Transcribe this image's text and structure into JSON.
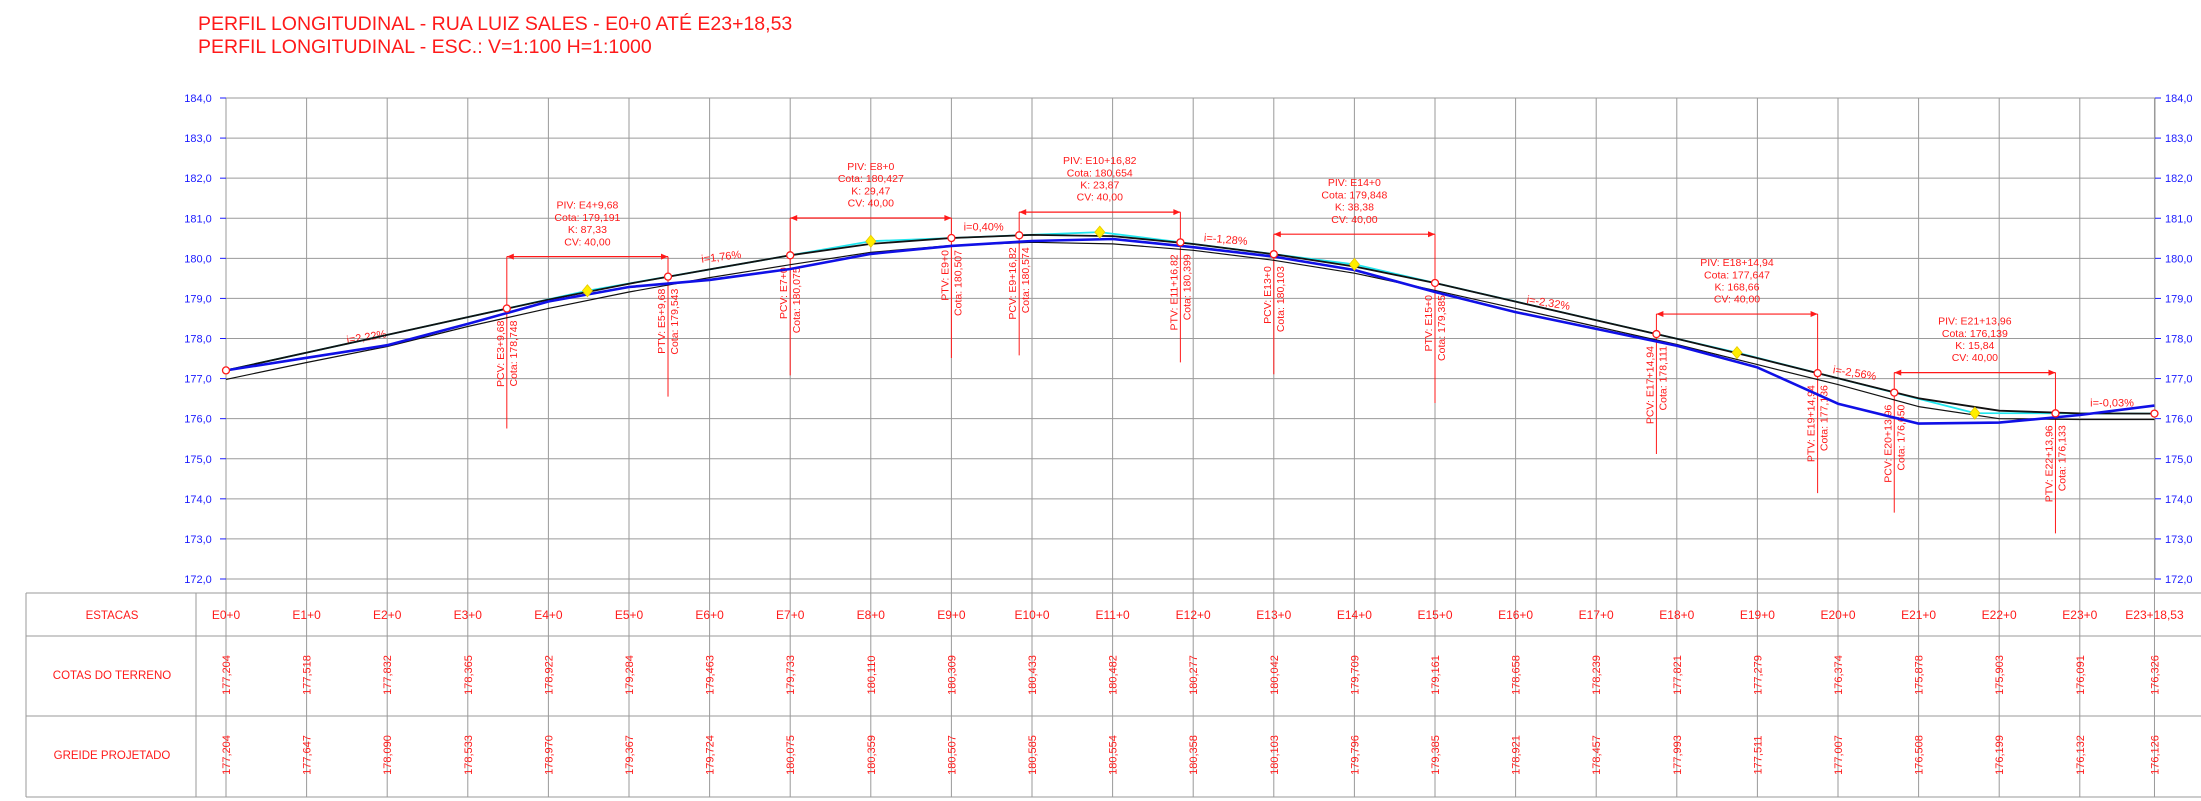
{
  "titles": {
    "line1": "PERFIL LONGITUDINAL - RUA LUIZ SALES - E0+0 ATÉ E23+18,53",
    "line2": "PERFIL LONGITUDINAL - ESC.: V=1:100 H=1:1000"
  },
  "colors": {
    "text_red": "#ff1a1a",
    "axis_blue": "#1a1aff",
    "grid": "#9a9a9a",
    "terrain_design": "#1010e6",
    "cyan_grade": "#22e6ee",
    "black_line": "#111111",
    "curve_marker": "#ff1a1a",
    "vertex_marker": "#ffee00"
  },
  "chart_data": {
    "type": "line",
    "ylim": [
      172.0,
      184.0
    ],
    "x_range": [
      0,
      23.9265
    ],
    "y_ticks": [
      "172,0",
      "173,0",
      "174,0",
      "175,0",
      "176,0",
      "177,0",
      "178,0",
      "179,0",
      "180,0",
      "181,0",
      "182,0",
      "183,0",
      "184,0"
    ],
    "y_tick_values": [
      172,
      173,
      174,
      175,
      176,
      177,
      178,
      179,
      180,
      181,
      182,
      183,
      184
    ],
    "stations": {
      "labels": [
        "E0+0",
        "E1+0",
        "E2+0",
        "E3+0",
        "E4+0",
        "E5+0",
        "E6+0",
        "E7+0",
        "E8+0",
        "E9+0",
        "E10+0",
        "E11+0",
        "E12+0",
        "E13+0",
        "E14+0",
        "E15+0",
        "E16+0",
        "E17+0",
        "E18+0",
        "E19+0",
        "E20+0",
        "E21+0",
        "E22+0",
        "E23+0",
        "E23+18,53"
      ],
      "x": [
        0,
        1,
        2,
        3,
        4,
        5,
        6,
        7,
        8,
        9,
        10,
        11,
        12,
        13,
        14,
        15,
        16,
        17,
        18,
        19,
        20,
        21,
        22,
        23,
        23.9265
      ],
      "terreno_text": [
        "177,204",
        "177,518",
        "177,832",
        "178,365",
        "178,922",
        "179,284",
        "179,463",
        "179,733",
        "180,110",
        "180,309",
        "180,433",
        "180,482",
        "180,277",
        "180,042",
        "179,709",
        "179,161",
        "178,658",
        "178,239",
        "177,821",
        "177,279",
        "176,374",
        "175,878",
        "175,903",
        "176,091",
        "176,326"
      ],
      "greide_text": [
        "177,204",
        "177,647",
        "178,090",
        "178,533",
        "178,970",
        "179,367",
        "179,724",
        "180,075",
        "180,359",
        "180,507",
        "180,585",
        "180,554",
        "180,358",
        "180,103",
        "179,796",
        "179,385",
        "178,921",
        "178,457",
        "177,993",
        "177,511",
        "177,007",
        "176,508",
        "176,199",
        "176,132",
        "176,126"
      ]
    },
    "series": [
      {
        "key": "terrain",
        "x": [
          0,
          1,
          2,
          3,
          4,
          5,
          6,
          7,
          8,
          9,
          10,
          11,
          12,
          13,
          14,
          15,
          16,
          17,
          18,
          19,
          20,
          21,
          22,
          23,
          23.9265
        ],
        "y": [
          177.204,
          177.518,
          177.832,
          178.365,
          178.922,
          179.284,
          179.463,
          179.733,
          180.11,
          180.309,
          180.433,
          180.482,
          180.277,
          180.042,
          179.709,
          179.161,
          178.658,
          178.239,
          177.821,
          177.279,
          176.374,
          175.878,
          175.903,
          176.091,
          176.326
        ]
      },
      {
        "key": "grade-design",
        "x": [
          0,
          1,
          2,
          3,
          4,
          5,
          6,
          7,
          8,
          9,
          10,
          11,
          12,
          13,
          14,
          15,
          16,
          17,
          18,
          19,
          20,
          21,
          22,
          23,
          23.9265
        ],
        "y": [
          177.204,
          177.647,
          178.09,
          178.533,
          178.97,
          179.367,
          179.724,
          180.075,
          180.359,
          180.507,
          180.585,
          180.554,
          180.358,
          180.103,
          179.796,
          179.385,
          178.921,
          178.457,
          177.993,
          177.511,
          177.007,
          176.508,
          176.199,
          176.132,
          176.126
        ]
      },
      {
        "key": "tangent-lines",
        "x": [
          0,
          4.484,
          8,
          10.841,
          14,
          18.747,
          21.698,
          23.9265
        ],
        "y": [
          177.204,
          179.191,
          180.427,
          180.654,
          179.848,
          177.647,
          176.139,
          176.126
        ]
      },
      {
        "key": "existing-ground",
        "x": [
          0,
          1,
          2,
          3,
          4,
          5,
          6,
          7,
          8,
          9,
          10,
          11,
          12,
          13,
          14,
          15,
          16,
          17,
          18,
          19,
          20,
          21,
          22,
          23,
          23.9265
        ],
        "y": [
          176.98,
          177.4,
          177.8,
          178.3,
          178.75,
          179.16,
          179.52,
          179.84,
          180.15,
          180.32,
          180.4,
          180.36,
          180.2,
          179.95,
          179.63,
          179.2,
          178.75,
          178.3,
          177.85,
          177.35,
          176.85,
          176.3,
          176.0,
          175.98,
          175.98
        ]
      }
    ],
    "grade_labels": [
      {
        "text": "i=2,22%",
        "x": 1.75,
        "y": 177.95,
        "angle": -9
      },
      {
        "text": "i=1,76%",
        "x": 6.15,
        "y": 179.95,
        "angle": -7
      },
      {
        "text": "i=0,40%",
        "x": 9.4,
        "y": 180.7,
        "angle": 0
      },
      {
        "text": "i=-1,28%",
        "x": 12.4,
        "y": 180.38,
        "angle": 5
      },
      {
        "text": "i=-2,32%",
        "x": 16.4,
        "y": 178.8,
        "angle": 9
      },
      {
        "text": "i=-2,56%",
        "x": 20.2,
        "y": 177.05,
        "angle": 9
      },
      {
        "text": "i=-0,03%",
        "x": 23.4,
        "y": 176.3,
        "angle": 0
      }
    ],
    "vertical_curves": [
      {
        "piv_x": 4.484,
        "piv_y": 179.191,
        "pcv_x": 3.484,
        "pcv_y": 178.748,
        "ptv_x": 5.484,
        "ptv_y": 179.543,
        "info": [
          "PIV: E4+9,68",
          "Cota: 179,191",
          "K: 87,33",
          "CV: 40,00"
        ],
        "pcv_label": [
          "PCV: E3+9,68",
          "Cota: 178,748"
        ],
        "ptv_label": [
          "PTV: E5+9,68",
          "Cota: 179,543"
        ]
      },
      {
        "piv_x": 8,
        "piv_y": 180.427,
        "pcv_x": 7,
        "pcv_y": 180.075,
        "ptv_x": 9,
        "ptv_y": 180.507,
        "info": [
          "PIV: E8+0",
          "Cota: 180,427",
          "K: 29,47",
          "CV: 40,00"
        ],
        "pcv_label": [
          "PCV: E7+0",
          "Cota: 180,075"
        ],
        "ptv_label": [
          "PTV: E9+0",
          "Cota: 180,507"
        ]
      },
      {
        "piv_x": 10.841,
        "piv_y": 180.654,
        "pcv_x": 9.841,
        "pcv_y": 180.574,
        "ptv_x": 11.841,
        "ptv_y": 180.399,
        "info": [
          "PIV: E10+16,82",
          "Cota: 180,654",
          "K: 23,87",
          "CV: 40,00"
        ],
        "pcv_label": [
          "PCV: E9+16,82",
          "Cota: 180,574"
        ],
        "ptv_label": [
          "PTV: E11+16,82",
          "Cota: 180,399"
        ]
      },
      {
        "piv_x": 14,
        "piv_y": 179.848,
        "pcv_x": 13,
        "pcv_y": 180.103,
        "ptv_x": 15,
        "ptv_y": 179.385,
        "info": [
          "PIV: E14+0",
          "Cota: 179,848",
          "K: 38,38",
          "CV: 40,00"
        ],
        "pcv_label": [
          "PCV: E13+0",
          "Cota: 180,103"
        ],
        "ptv_label": [
          "PTV: E15+0",
          "Cota: 179,385"
        ]
      },
      {
        "piv_x": 18.747,
        "piv_y": 177.647,
        "pcv_x": 17.747,
        "pcv_y": 178.111,
        "ptv_x": 19.747,
        "ptv_y": 177.136,
        "info": [
          "PIV: E18+14,94",
          "Cota: 177,647",
          "K: 168,66",
          "CV: 40,00"
        ],
        "pcv_label": [
          "PCV: E17+14,94",
          "Cota: 178,111"
        ],
        "ptv_label": [
          "PTV: E19+14,94",
          "Cota: 177,136"
        ]
      },
      {
        "piv_x": 21.698,
        "piv_y": 176.139,
        "pcv_x": 20.698,
        "pcv_y": 176.65,
        "ptv_x": 22.698,
        "ptv_y": 176.133,
        "info": [
          "PIV: E21+13,96",
          "Cota: 176,139",
          "K: 15,84",
          "CV: 40,00"
        ],
        "pcv_label": [
          "PCV: E20+13,96",
          "Cota: 176,650"
        ],
        "ptv_label": [
          "PTV: E22+13,96",
          "Cota: 176,133"
        ]
      }
    ]
  },
  "table": {
    "row_labels": {
      "estacas": "ESTACAS",
      "terreno": "COTAS DO TERRENO",
      "greide": "GREIDE PROJETADO"
    }
  }
}
